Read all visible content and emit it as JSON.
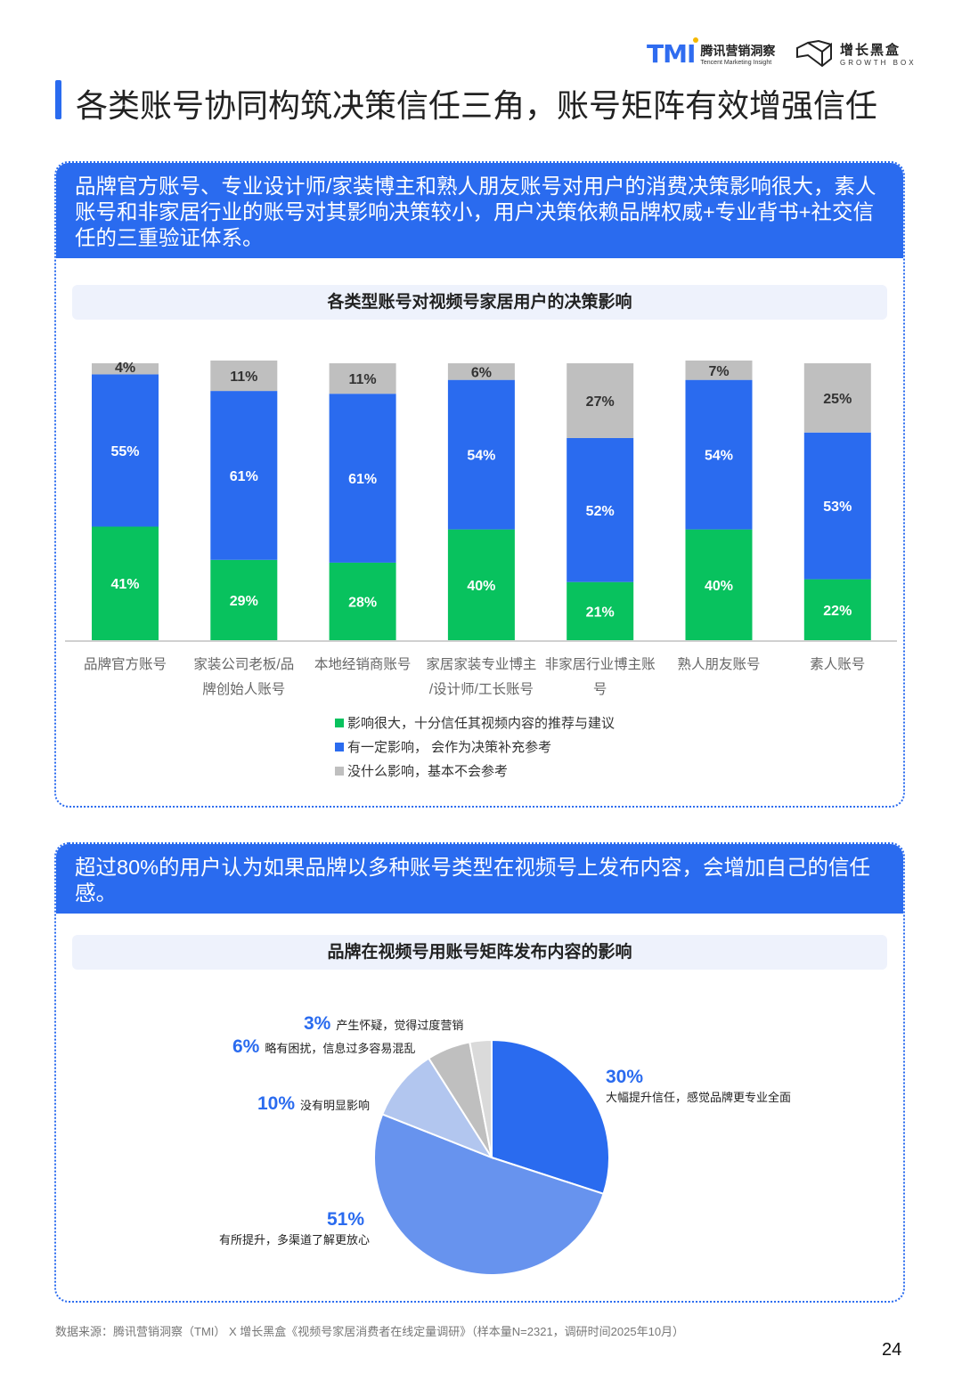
{
  "header": {
    "tmi_logo_cn": "腾讯营销洞察",
    "tmi_logo_en": "Tencent Marketing Insight",
    "tmi_mark": "TMI",
    "gb_logo_cn": "增长黑盒",
    "gb_logo_en": "GROWTH BOX"
  },
  "page_title": "各类账号协同构筑决策信任三角，账号矩阵有效增强信任",
  "card1": {
    "headline": "品牌官方账号、专业设计师/家装博主和熟人朋友账号对用户的消费决策影响很大，素人账号和非家居行业的账号对其影响决策较小，用户决策依赖品牌权威+专业背书+社交信任的三重验证体系。"
  },
  "card2": {
    "headline": "超过80%的用户认为如果品牌以多种账号类型在视频号上发布内容，会增加自己的信任感。"
  },
  "chart_data": [
    {
      "type": "bar",
      "stacked": true,
      "title": "各类型账号对视频号家居用户的决策影响",
      "categories": [
        "品牌官方账号",
        "家装公司老板/品牌创始人账号",
        "本地经销商账号",
        "家居家装专业博主/设计师/工长账号",
        "非家居行业博主账号",
        "熟人朋友账号",
        "素人账号"
      ],
      "category_lines": [
        [
          "品牌官方账号"
        ],
        [
          "家装公司老板/品",
          "牌创始人账号"
        ],
        [
          "本地经销商账号"
        ],
        [
          "家居家装专业博主",
          "/设计师/工长账号"
        ],
        [
          "非家居行业博主账",
          "号"
        ],
        [
          "熟人朋友账号"
        ],
        [
          "素人账号"
        ]
      ],
      "series": [
        {
          "name": "影响很大，十分信任其视频内容的推荐与建议",
          "color": "#08c25e",
          "values": [
            41,
            29,
            28,
            40,
            21,
            40,
            22
          ]
        },
        {
          "name": "有一定影响， 会作为决策补充参考",
          "color": "#2a6bef",
          "values": [
            55,
            61,
            61,
            54,
            52,
            54,
            53
          ]
        },
        {
          "name": "没什么影响，基本不会参考",
          "color": "#bfbfbf",
          "values": [
            4,
            11,
            11,
            6,
            27,
            7,
            25
          ]
        }
      ],
      "ylim": [
        0,
        100
      ],
      "legend": "bottom"
    },
    {
      "type": "pie",
      "title": "品牌在视频号用账号矩阵发布内容的影响",
      "slices": [
        {
          "label": "大幅提升信任，感觉品牌更专业全面",
          "value": 30,
          "color": "#2a6bef"
        },
        {
          "label": "有所提升，多渠道了解更放心",
          "value": 51,
          "color": "#6793ee"
        },
        {
          "label": "没有明显影响",
          "value": 10,
          "color": "#b2c6ef"
        },
        {
          "label": "略有困扰，信息过多容易混乱",
          "value": 6,
          "color": "#bfbfbf"
        },
        {
          "label": "产生怀疑，觉得过度营销",
          "value": 3,
          "color": "#dadada"
        }
      ]
    }
  ],
  "footer": {
    "source": "数据来源：腾讯营销洞察（TMI） X 增长黑盒《视频号家居消费者在线定量调研》（样本量N=2321，调研时间2025年10月）",
    "page_number": "24"
  }
}
